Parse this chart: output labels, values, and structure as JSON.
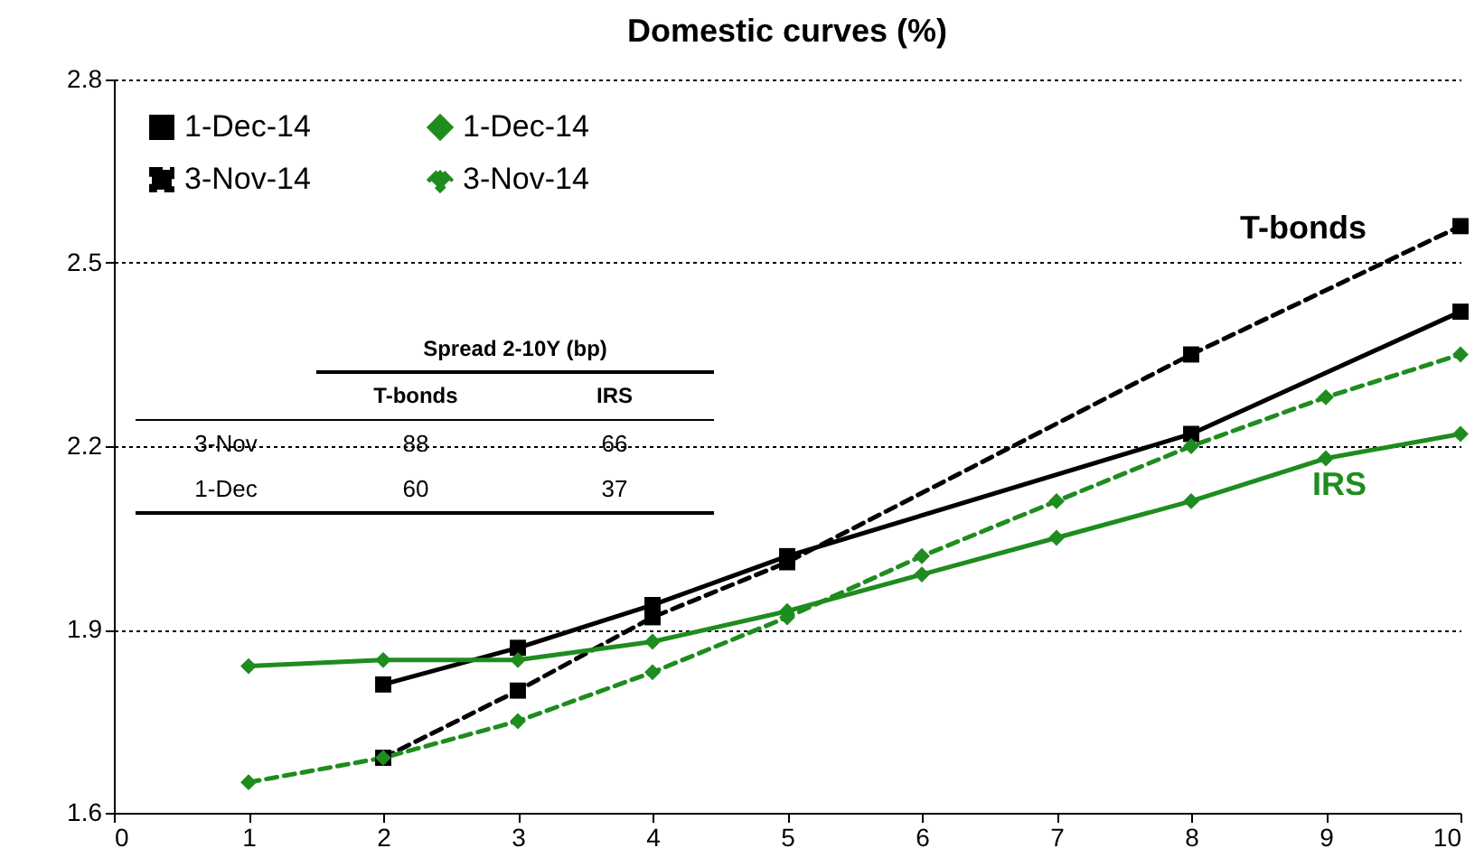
{
  "chart_data": {
    "type": "line",
    "title": "Domestic curves (%)",
    "xlim": [
      0,
      10
    ],
    "xticks": [
      0,
      1,
      2,
      3,
      4,
      5,
      6,
      7,
      8,
      9,
      10
    ],
    "ylim": [
      1.6,
      2.8
    ],
    "yticks": [
      1.6,
      1.9,
      2.2,
      2.5,
      2.8
    ],
    "grid": "y",
    "legend": "top left",
    "series": [
      {
        "name": "1-Dec-14",
        "color": "#000000",
        "marker": "square",
        "line_style": "solid",
        "x": [
          2,
          3,
          4,
          5,
          8,
          10
        ],
        "values": [
          1.81,
          1.87,
          1.94,
          2.02,
          2.22,
          2.42
        ]
      },
      {
        "name": "3-Nov-14",
        "color": "#000000",
        "marker": "square",
        "line_style": "dashed",
        "x": [
          2,
          3,
          4,
          5,
          8,
          10
        ],
        "values": [
          1.69,
          1.8,
          1.92,
          2.01,
          2.35,
          2.56
        ]
      },
      {
        "name": "1-Dec-14",
        "color": "#1e8c1e",
        "marker": "diamond",
        "line_style": "solid",
        "x": [
          1,
          2,
          3,
          4,
          5,
          6,
          7,
          8,
          9,
          10
        ],
        "values": [
          1.84,
          1.85,
          1.85,
          1.88,
          1.93,
          1.99,
          2.05,
          2.11,
          2.18,
          2.22
        ]
      },
      {
        "name": "3-Nov-14",
        "color": "#1e8c1e",
        "marker": "diamond",
        "line_style": "dashed",
        "x": [
          1,
          2,
          3,
          4,
          5,
          6,
          7,
          8,
          9,
          10
        ],
        "values": [
          1.65,
          1.69,
          1.75,
          1.83,
          1.92,
          2.02,
          2.11,
          2.2,
          2.28,
          2.35
        ]
      }
    ],
    "annotations": [
      "T-bonds",
      "IRS",
      "Spread 2-10Y (bp)",
      "T-bonds",
      "IRS",
      "3-Nov",
      "88",
      "66",
      "1-Dec",
      "60",
      "37"
    ]
  }
}
